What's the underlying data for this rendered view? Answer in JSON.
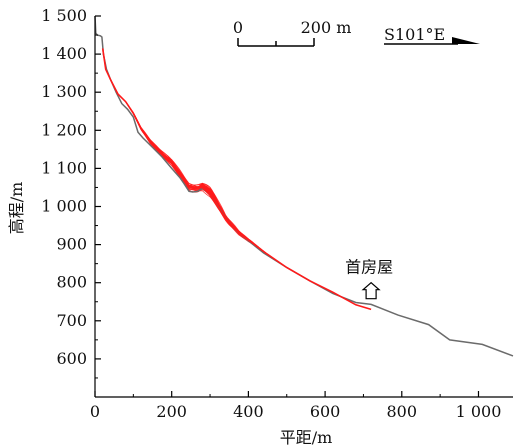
{
  "chart_data": {
    "type": "line",
    "xlabel": "平距/m",
    "ylabel": "高程/m",
    "xlim": [
      0,
      1090
    ],
    "ylim": [
      500,
      1500
    ],
    "x_ticks": [
      {
        "value": 0,
        "label": "0"
      },
      {
        "value": 200,
        "label": "200"
      },
      {
        "value": 400,
        "label": "400"
      },
      {
        "value": 600,
        "label": "600"
      },
      {
        "value": 800,
        "label": "800"
      },
      {
        "value": 1000,
        "label": "1 000"
      }
    ],
    "y_ticks": [
      {
        "value": 600,
        "label": "600"
      },
      {
        "value": 700,
        "label": "700"
      },
      {
        "value": 800,
        "label": "800"
      },
      {
        "value": 900,
        "label": "900"
      },
      {
        "value": 1000,
        "label": "1 000"
      },
      {
        "value": 1100,
        "label": "1 100"
      },
      {
        "value": 1200,
        "label": "1 200"
      },
      {
        "value": 1300,
        "label": "1 300"
      },
      {
        "value": 1400,
        "label": "1 400"
      },
      {
        "value": 1500,
        "label": "1 500"
      }
    ],
    "grid": false,
    "colors": {
      "terrain": "#6b6b6b",
      "trajectory": "#ff1a1a",
      "axis": "#000000"
    },
    "series": [
      {
        "role": "terrain",
        "x": [
          0,
          2,
          6,
          14,
          18,
          22,
          30,
          40,
          55,
          70,
          85,
          100,
          112,
          125,
          150,
          175,
          200,
          222,
          232,
          245,
          255,
          268,
          280,
          298,
          320,
          345,
          370,
          400,
          440,
          500,
          560,
          620,
          680,
          720,
          790,
          870,
          925,
          1010,
          1090
        ],
        "y": [
          1500,
          1455,
          1450,
          1448,
          1445,
          1400,
          1360,
          1335,
          1300,
          1270,
          1255,
          1235,
          1195,
          1180,
          1155,
          1130,
          1100,
          1075,
          1060,
          1040,
          1038,
          1040,
          1048,
          1032,
          1000,
          965,
          935,
          910,
          878,
          840,
          805,
          772,
          748,
          743,
          715,
          690,
          650,
          638,
          608
        ]
      },
      {
        "role": "trajectory",
        "x": [
          20,
          28,
          42,
          60,
          80,
          100,
          120,
          145,
          172,
          200,
          225,
          245,
          262,
          280,
          300,
          322,
          348,
          376,
          410,
          445,
          500,
          560,
          620,
          680,
          720
        ],
        "y": [
          1415,
          1360,
          1330,
          1295,
          1275,
          1245,
          1205,
          1170,
          1140,
          1115,
          1080,
          1052,
          1048,
          1050,
          1030,
          995,
          960,
          930,
          905,
          878,
          840,
          805,
          775,
          742,
          730
        ]
      }
    ],
    "trajectory_band": {
      "x_range": [
        80,
        445
      ],
      "y_spread": 12,
      "bulge_x_range": [
        270,
        340
      ],
      "bulge_height": 18,
      "line_count": 24
    },
    "scale_bar": {
      "labels": [
        "0",
        "200 m"
      ],
      "value_m": 200
    },
    "direction_label": "S101°E",
    "marker": {
      "label": "首房屋",
      "x": 720,
      "y": 758,
      "icon": "up-arrow-icon"
    }
  }
}
